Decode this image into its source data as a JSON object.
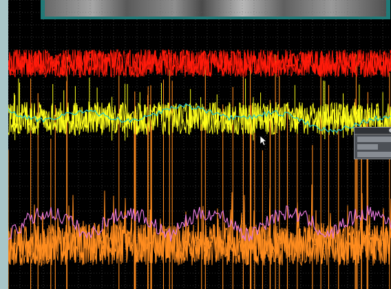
{
  "colors": {
    "panel_background": "#a9c7c9",
    "plot_background": "#000000",
    "grid": "#666666",
    "video_frame": "#1f7a78",
    "trace_red": "#ff1a0a",
    "trace_yellow": "#ffff1a",
    "trace_cyan": "#26c8c8",
    "trace_orange": "#ff8c1f",
    "trace_pink": "#e477d8"
  },
  "traces": [
    {
      "name": "red",
      "color": "#ff1a0a",
      "style": "dense noise band"
    },
    {
      "name": "yellow",
      "color": "#ffff1a",
      "style": "spiky noise band"
    },
    {
      "name": "cyan",
      "color": "#26c8c8",
      "style": "smooth envelope"
    },
    {
      "name": "orange",
      "color": "#ff8c1f",
      "style": "dense noise and tall spikes"
    },
    {
      "name": "pink",
      "color": "#e477d8",
      "style": "envelope"
    }
  ],
  "icons": {
    "cursor": "arrow-cursor-icon",
    "panel_close": "close-icon"
  }
}
